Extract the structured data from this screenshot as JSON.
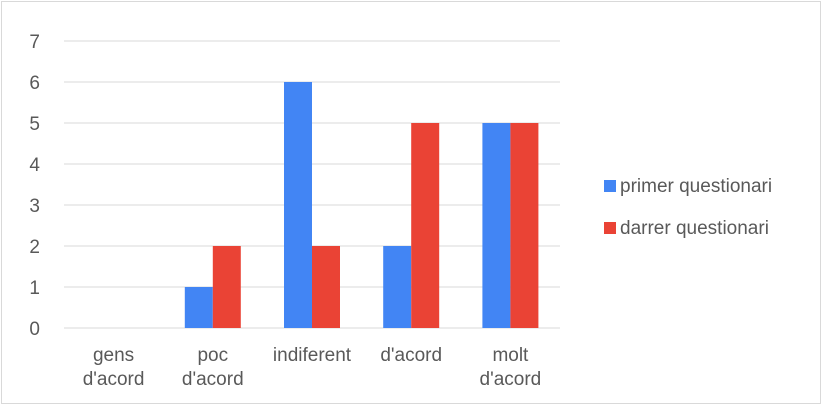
{
  "chart_data": {
    "type": "bar",
    "categories": [
      [
        "gens",
        "d'acord"
      ],
      [
        "poc",
        "d'acord"
      ],
      [
        "indiferent"
      ],
      [
        "d'acord"
      ],
      [
        "molt",
        "d'acord"
      ]
    ],
    "series": [
      {
        "name": "primer questionari",
        "color": "#4285f4",
        "values": [
          0,
          1,
          6,
          2,
          5
        ]
      },
      {
        "name": "darrer questionari",
        "color": "#ea4335",
        "values": [
          0,
          2,
          2,
          5,
          5
        ]
      }
    ],
    "yticks": [
      "0",
      "1",
      "2",
      "3",
      "4",
      "5",
      "6",
      "7"
    ],
    "ylim": [
      0,
      7
    ],
    "grid": true,
    "gridColor": "#d9d9d9",
    "legend_position": "right"
  }
}
